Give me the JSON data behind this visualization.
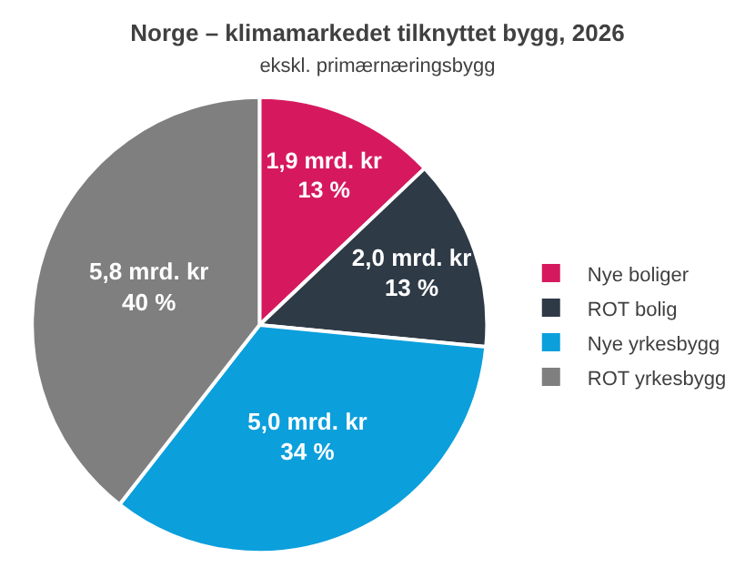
{
  "chart_data": {
    "type": "pie",
    "title": "Norge – klimamarkedet tilknyttet bygg, 2026",
    "subtitle": "ekskl. primærnæringsbygg",
    "categories": [
      "Nye boliger",
      "ROT bolig",
      "Nye yrkesbygg",
      "ROT yrkesbygg"
    ],
    "values": [
      1.9,
      2.0,
      5.0,
      5.8
    ],
    "colors": [
      "#d6195e",
      "#2e3a46",
      "#0b9fdc",
      "#7f7f7f"
    ],
    "value_labels": [
      "1,9 mrd. kr\n13 %",
      "2,0 mrd. kr\n13 %",
      "5,0 mrd. kr\n34 %",
      "5,8 mrd. kr\n40 %"
    ],
    "legend": "right"
  }
}
